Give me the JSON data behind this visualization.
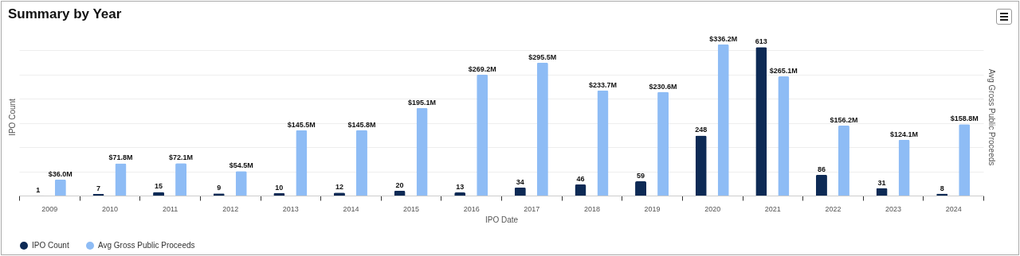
{
  "chart_data": {
    "type": "bar",
    "title": "Summary by Year",
    "xlabel": "IPO Date",
    "ylabel": "IPO Count",
    "y2label": "Avg Gross Public Proceeds",
    "categories": [
      "2009",
      "2010",
      "2011",
      "2012",
      "2013",
      "2014",
      "2015",
      "2016",
      "2017",
      "2018",
      "2019",
      "2020",
      "2021",
      "2022",
      "2023",
      "2024"
    ],
    "series": [
      {
        "name": "IPO Count",
        "color": "#0d2a55",
        "values": [
          1,
          7,
          15,
          9,
          10,
          12,
          20,
          13,
          34,
          46,
          59,
          248,
          613,
          86,
          31,
          8
        ],
        "value_labels": [
          "1",
          "7",
          "15",
          "9",
          "10",
          "12",
          "20",
          "13",
          "34",
          "46",
          "59",
          "248",
          "613",
          "86",
          "31",
          "8"
        ]
      },
      {
        "name": "Avg Gross Public Proceeds",
        "color": "#8ebcf5",
        "axis": "y2",
        "values": [
          36.0,
          71.8,
          72.1,
          54.5,
          145.5,
          145.8,
          195.1,
          269.2,
          295.5,
          233.7,
          230.6,
          336.2,
          265.1,
          156.2,
          124.1,
          158.8
        ],
        "value_labels": [
          "$36.0M",
          "$71.8M",
          "$72.1M",
          "$54.5M",
          "$145.5M",
          "$145.8M",
          "$195.1M",
          "$269.2M",
          "$295.5M",
          "$233.7M",
          "$230.6M",
          "$336.2M",
          "$265.1M",
          "$156.2M",
          "$124.1M",
          "$158.8M"
        ]
      }
    ],
    "grid": "y",
    "legend": "bottom",
    "tick_labels": "x"
  }
}
